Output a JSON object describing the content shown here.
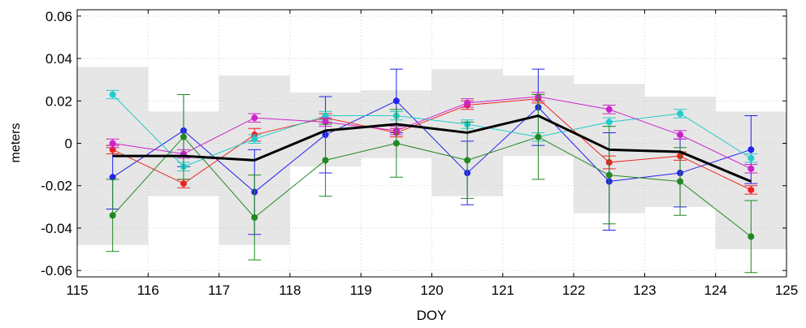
{
  "chart_data": {
    "type": "line",
    "title": "",
    "xlabel": "DOY",
    "ylabel": "meters",
    "xlim": [
      115,
      125
    ],
    "ylim": [
      -0.063,
      0.063
    ],
    "xticks": [
      115,
      116,
      117,
      118,
      119,
      120,
      121,
      122,
      123,
      124,
      125
    ],
    "yticks": [
      -0.06,
      -0.04,
      -0.02,
      0,
      0.02,
      0.04,
      0.06
    ],
    "ytick_labels": [
      "-0.06",
      "-0.04",
      "-0.02",
      "0",
      "0.02",
      "0.04",
      "0.06"
    ],
    "grid": true,
    "legend": "none",
    "bands": [
      {
        "x0": 115,
        "x1": 116,
        "low": -0.048,
        "high": 0.036
      },
      {
        "x0": 116,
        "x1": 117,
        "low": -0.025,
        "high": 0.015
      },
      {
        "x0": 117,
        "x1": 118,
        "low": -0.048,
        "high": 0.032
      },
      {
        "x0": 118,
        "x1": 119,
        "low": -0.011,
        "high": 0.024
      },
      {
        "x0": 119,
        "x1": 120,
        "low": -0.007,
        "high": 0.025
      },
      {
        "x0": 120,
        "x1": 121,
        "low": -0.025,
        "high": 0.035
      },
      {
        "x0": 121,
        "x1": 122,
        "low": -0.006,
        "high": 0.032
      },
      {
        "x0": 122,
        "x1": 123,
        "low": -0.033,
        "high": 0.028
      },
      {
        "x0": 123,
        "x1": 124,
        "low": -0.03,
        "high": 0.022
      },
      {
        "x0": 124,
        "x1": 125,
        "low": -0.05,
        "high": 0.015
      }
    ],
    "x": [
      115.5,
      116.5,
      117.5,
      118.5,
      119.5,
      120.5,
      121.5,
      122.5,
      123.5,
      124.5
    ],
    "series": [
      {
        "color": "#2222ee",
        "values": [
          -0.016,
          0.006,
          -0.023,
          0.004,
          0.02,
          -0.014,
          0.017,
          -0.018,
          -0.014,
          -0.003
        ],
        "errors": [
          0.015,
          0.017,
          0.02,
          0.018,
          0.015,
          0.015,
          0.018,
          0.023,
          0.016,
          0.016
        ]
      },
      {
        "color": "#ee2222",
        "values": [
          -0.003,
          -0.019,
          0.004,
          0.012,
          0.005,
          0.018,
          0.021,
          -0.009,
          -0.006,
          -0.022
        ],
        "errors": [
          0.002,
          0.002,
          0.003,
          0.002,
          0.002,
          0.002,
          0.002,
          0.003,
          0.002,
          0.002
        ]
      },
      {
        "color": "#22cccc",
        "values": [
          0.023,
          -0.011,
          0.002,
          0.013,
          0.013,
          0.009,
          0.003,
          0.01,
          0.014,
          -0.007
        ],
        "errors": [
          0.002,
          0.002,
          0.002,
          0.002,
          0.002,
          0.002,
          0.002,
          0.002,
          0.002,
          0.002
        ]
      },
      {
        "color": "#cc22cc",
        "values": [
          0.0,
          -0.005,
          0.012,
          0.01,
          0.006,
          0.019,
          0.022,
          0.016,
          0.004,
          -0.012
        ],
        "errors": [
          0.002,
          0.002,
          0.002,
          0.002,
          0.002,
          0.002,
          0.002,
          0.002,
          0.002,
          0.002
        ]
      },
      {
        "color": "#228822",
        "values": [
          -0.034,
          0.003,
          -0.035,
          -0.008,
          0.0,
          -0.008,
          0.003,
          -0.015,
          -0.018,
          -0.044
        ],
        "errors": [
          0.017,
          0.02,
          0.02,
          0.017,
          0.016,
          0.018,
          0.02,
          0.023,
          0.016,
          0.017
        ]
      },
      {
        "color": "#000000",
        "values": [
          -0.006,
          -0.006,
          -0.008,
          0.006,
          0.009,
          0.005,
          0.013,
          -0.003,
          -0.004,
          -0.018
        ],
        "errors": null
      }
    ]
  }
}
